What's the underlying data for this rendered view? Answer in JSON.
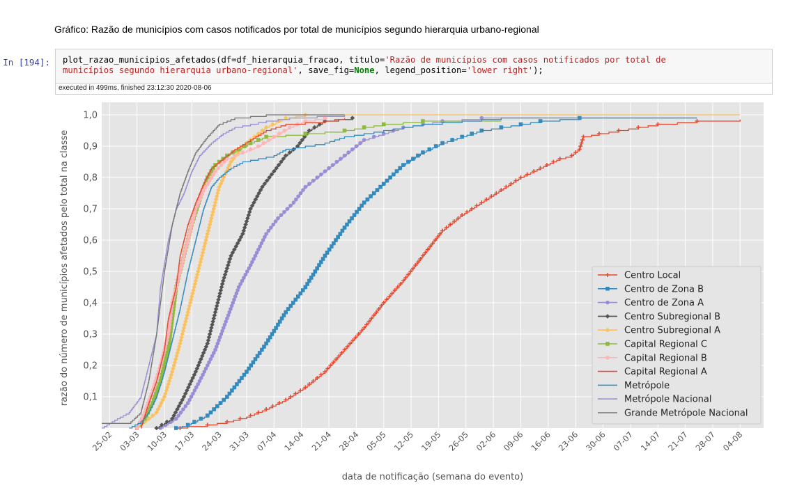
{
  "heading": "Gráfico: Razão de municípios com casos notificados por total de municípios segundo hierarquia urbano-regional",
  "cell": {
    "prompt": "In [194]:",
    "code_line1_a": "plot_razao_municipios_afetados(df=df_hierarquia_fracao, titulo=",
    "code_line1_str": "'Razão de municípios com casos notificados por total de",
    "code_line2_str": "municípios segundo hierarquia urbano-regional'",
    "code_line2_b": ", save_fig=",
    "code_line2_kw": "None",
    "code_line2_c": ", legend_position=",
    "code_line2_str2": "'lower right'",
    "code_line2_d": ");",
    "exec_info": "executed in 499ms, finished 23:12:30 2020-08-06"
  },
  "chart_data": {
    "type": "line",
    "xlabel": "data de notificação (semana do evento)",
    "ylabel": "razão do número de municípios afetados pelo total na classe",
    "x_ticks": [
      "25-02",
      "03-03",
      "10-03",
      "17-03",
      "24-03",
      "31-03",
      "07-04",
      "14-04",
      "21-04",
      "28-04",
      "05-05",
      "12-05",
      "19-05",
      "26-05",
      "02-06",
      "09-06",
      "16-06",
      "23-06",
      "30-06",
      "07-07",
      "14-07",
      "21-07",
      "28-07",
      "04-08"
    ],
    "y_ticks": [
      0.1,
      0.2,
      0.3,
      0.4,
      0.5,
      0.6,
      0.7,
      0.8,
      0.9,
      1.0
    ],
    "y_tick_labels": [
      "0,1",
      "0,2",
      "0,3",
      "0,4",
      "0,5",
      "0,6",
      "0,7",
      "0,8",
      "0,9",
      "1,0"
    ],
    "x_day_range": [
      -2,
      167
    ],
    "ylim": [
      0,
      1.04
    ],
    "grid": true,
    "legend_position": "lower right",
    "series": [
      {
        "name": "Centro Local",
        "color": "#e24a33",
        "marker": "plus",
        "points": [
          [
            18,
            0
          ],
          [
            20,
            0.005
          ],
          [
            25,
            0.01
          ],
          [
            30,
            0.02
          ],
          [
            35,
            0.035
          ],
          [
            40,
            0.06
          ],
          [
            45,
            0.09
          ],
          [
            50,
            0.13
          ],
          [
            55,
            0.18
          ],
          [
            60,
            0.25
          ],
          [
            65,
            0.32
          ],
          [
            70,
            0.4
          ],
          [
            75,
            0.47
          ],
          [
            80,
            0.55
          ],
          [
            85,
            0.63
          ],
          [
            90,
            0.68
          ],
          [
            95,
            0.72
          ],
          [
            100,
            0.76
          ],
          [
            105,
            0.8
          ],
          [
            110,
            0.83
          ],
          [
            115,
            0.86
          ],
          [
            118,
            0.87
          ],
          [
            120,
            0.89
          ],
          [
            121,
            0.93
          ],
          [
            125,
            0.94
          ],
          [
            130,
            0.95
          ],
          [
            135,
            0.96
          ],
          [
            140,
            0.97
          ],
          [
            150,
            0.98
          ],
          [
            161,
            0.985
          ]
        ]
      },
      {
        "name": "Centro de Zona B",
        "color": "#348abd",
        "marker": "square",
        "points": [
          [
            17,
            0
          ],
          [
            20,
            0.01
          ],
          [
            25,
            0.04
          ],
          [
            30,
            0.1
          ],
          [
            35,
            0.18
          ],
          [
            40,
            0.27
          ],
          [
            45,
            0.37
          ],
          [
            50,
            0.45
          ],
          [
            55,
            0.55
          ],
          [
            60,
            0.64
          ],
          [
            65,
            0.72
          ],
          [
            70,
            0.78
          ],
          [
            75,
            0.84
          ],
          [
            80,
            0.88
          ],
          [
            85,
            0.91
          ],
          [
            90,
            0.93
          ],
          [
            95,
            0.95
          ],
          [
            100,
            0.96
          ],
          [
            105,
            0.97
          ],
          [
            110,
            0.98
          ],
          [
            115,
            0.985
          ],
          [
            120,
            0.99
          ],
          [
            150,
            0.99
          ]
        ]
      },
      {
        "name": "Centro de Zona A",
        "color": "#988ed5",
        "marker": "circle",
        "points": [
          [
            13,
            0
          ],
          [
            17,
            0.03
          ],
          [
            20,
            0.08
          ],
          [
            23,
            0.15
          ],
          [
            27,
            0.25
          ],
          [
            30,
            0.35
          ],
          [
            33,
            0.45
          ],
          [
            36,
            0.52
          ],
          [
            40,
            0.62
          ],
          [
            43,
            0.67
          ],
          [
            47,
            0.72
          ],
          [
            50,
            0.77
          ],
          [
            55,
            0.82
          ],
          [
            60,
            0.87
          ],
          [
            65,
            0.92
          ],
          [
            70,
            0.94
          ],
          [
            75,
            0.96
          ],
          [
            80,
            0.97
          ],
          [
            85,
            0.98
          ],
          [
            95,
            0.99
          ],
          [
            110,
            0.99
          ]
        ]
      },
      {
        "name": "Centro Subregional B",
        "color": "#555555",
        "marker": "diamond",
        "points": [
          [
            12,
            0
          ],
          [
            16,
            0.03
          ],
          [
            19,
            0.1
          ],
          [
            22,
            0.18
          ],
          [
            25,
            0.27
          ],
          [
            27,
            0.37
          ],
          [
            29,
            0.47
          ],
          [
            31,
            0.55
          ],
          [
            34,
            0.62
          ],
          [
            36,
            0.7
          ],
          [
            39,
            0.77
          ],
          [
            42,
            0.82
          ],
          [
            45,
            0.87
          ],
          [
            48,
            0.9
          ],
          [
            51,
            0.95
          ],
          [
            55,
            0.98
          ],
          [
            62,
            0.99
          ]
        ]
      },
      {
        "name": "Centro Subregional A",
        "color": "#fbc15e",
        "marker": "diamond",
        "points": [
          [
            7,
            0
          ],
          [
            9,
            0.02
          ],
          [
            12,
            0.05
          ],
          [
            14,
            0.1
          ],
          [
            16,
            0.18
          ],
          [
            18,
            0.27
          ],
          [
            20,
            0.37
          ],
          [
            22,
            0.47
          ],
          [
            24,
            0.57
          ],
          [
            26,
            0.67
          ],
          [
            28,
            0.77
          ],
          [
            31,
            0.85
          ],
          [
            34,
            0.9
          ],
          [
            37,
            0.93
          ],
          [
            40,
            0.96
          ],
          [
            45,
            0.99
          ],
          [
            50,
            1.0
          ],
          [
            161,
            1.0
          ]
        ]
      },
      {
        "name": "Capital Regional C",
        "color": "#8eba42",
        "marker": "square",
        "points": [
          [
            7,
            0
          ],
          [
            9,
            0.03
          ],
          [
            11,
            0.08
          ],
          [
            13,
            0.15
          ],
          [
            15,
            0.25
          ],
          [
            16,
            0.35
          ],
          [
            17,
            0.45
          ],
          [
            19,
            0.55
          ],
          [
            21,
            0.65
          ],
          [
            23,
            0.73
          ],
          [
            25,
            0.8
          ],
          [
            27,
            0.84
          ],
          [
            30,
            0.87
          ],
          [
            33,
            0.89
          ],
          [
            36,
            0.91
          ],
          [
            40,
            0.93
          ],
          [
            50,
            0.94
          ],
          [
            60,
            0.95
          ],
          [
            70,
            0.97
          ],
          [
            80,
            0.98
          ],
          [
            100,
            0.98
          ]
        ]
      },
      {
        "name": "Capital Regional B",
        "color": "#ffb5b8",
        "marker": "circle",
        "points": [
          [
            7,
            0
          ],
          [
            9,
            0.05
          ],
          [
            11,
            0.12
          ],
          [
            13,
            0.2
          ],
          [
            15,
            0.3
          ],
          [
            16,
            0.4
          ],
          [
            18,
            0.5
          ],
          [
            20,
            0.6
          ],
          [
            22,
            0.7
          ],
          [
            24,
            0.76
          ],
          [
            27,
            0.82
          ],
          [
            30,
            0.86
          ],
          [
            34,
            0.88
          ],
          [
            38,
            0.9
          ],
          [
            42,
            0.93
          ],
          [
            46,
            0.96
          ],
          [
            50,
            0.98
          ],
          [
            55,
            0.99
          ]
        ]
      },
      {
        "name": "Capital Regional A",
        "color": "#e24a33",
        "marker": "none",
        "points": [
          [
            8,
            0
          ],
          [
            10,
            0.08
          ],
          [
            12,
            0.15
          ],
          [
            14,
            0.25
          ],
          [
            15,
            0.35
          ],
          [
            17,
            0.45
          ],
          [
            18,
            0.55
          ],
          [
            20,
            0.65
          ],
          [
            22,
            0.72
          ],
          [
            24,
            0.78
          ],
          [
            26,
            0.83
          ],
          [
            29,
            0.86
          ],
          [
            32,
            0.89
          ],
          [
            36,
            0.92
          ],
          [
            40,
            0.95
          ],
          [
            45,
            0.97
          ],
          [
            55,
            0.98
          ],
          [
            60,
            0.99
          ]
        ]
      },
      {
        "name": "Metrópole",
        "color": "#348abd",
        "marker": "none",
        "points": [
          [
            5,
            0
          ],
          [
            8,
            0.02
          ],
          [
            10,
            0.05
          ],
          [
            12,
            0.1
          ],
          [
            14,
            0.18
          ],
          [
            16,
            0.28
          ],
          [
            18,
            0.38
          ],
          [
            20,
            0.5
          ],
          [
            22,
            0.6
          ],
          [
            24,
            0.7
          ],
          [
            26,
            0.77
          ],
          [
            28,
            0.8
          ],
          [
            31,
            0.83
          ],
          [
            34,
            0.85
          ],
          [
            38,
            0.86
          ],
          [
            42,
            0.87
          ],
          [
            45,
            0.89
          ],
          [
            50,
            0.9
          ],
          [
            55,
            0.91
          ],
          [
            60,
            0.93
          ],
          [
            70,
            0.95
          ],
          [
            80,
            0.97
          ],
          [
            90,
            0.98
          ],
          [
            100,
            0.99
          ],
          [
            150,
            0.99
          ]
        ]
      },
      {
        "name": "Metrópole Nacional",
        "color": "#988ed5",
        "marker": "none",
        "points": [
          [
            -2,
            0
          ],
          [
            2,
            0.03
          ],
          [
            5,
            0.05
          ],
          [
            8,
            0.1
          ],
          [
            10,
            0.2
          ],
          [
            12,
            0.3
          ],
          [
            13,
            0.45
          ],
          [
            15,
            0.6
          ],
          [
            17,
            0.7
          ],
          [
            19,
            0.75
          ],
          [
            21,
            0.82
          ],
          [
            23,
            0.87
          ],
          [
            26,
            0.91
          ],
          [
            29,
            0.94
          ],
          [
            32,
            0.96
          ],
          [
            36,
            0.97
          ],
          [
            40,
            0.98
          ],
          [
            46,
            0.99
          ],
          [
            60,
            1.0
          ]
        ]
      },
      {
        "name": "Grande Metrópole Nacional",
        "color": "#777777",
        "marker": "none",
        "points": [
          [
            -2,
            0.015
          ],
          [
            5,
            0.015
          ],
          [
            8,
            0.05
          ],
          [
            10,
            0.15
          ],
          [
            12,
            0.3
          ],
          [
            14,
            0.5
          ],
          [
            16,
            0.65
          ],
          [
            18,
            0.75
          ],
          [
            20,
            0.82
          ],
          [
            22,
            0.88
          ],
          [
            25,
            0.93
          ],
          [
            28,
            0.97
          ],
          [
            32,
            0.99
          ],
          [
            40,
            1.0
          ],
          [
            60,
            1.0
          ]
        ]
      }
    ]
  }
}
